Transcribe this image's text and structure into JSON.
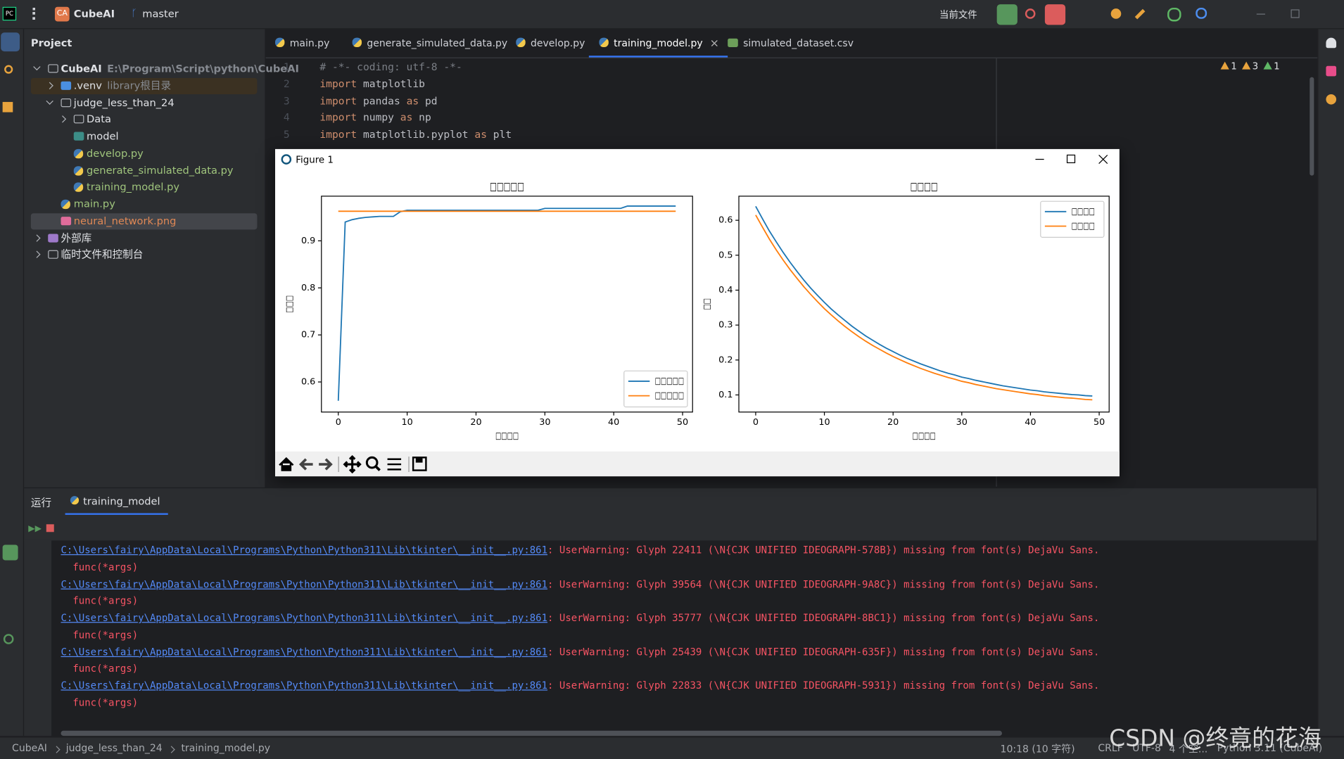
{
  "toolbar": {
    "project_badge": "CA",
    "project": "CubeAI",
    "branch": "master",
    "run_config": "当前文件"
  },
  "project_panel": {
    "title": "Project",
    "tree": [
      {
        "label": "CubeAI",
        "note": "E:\\Program\\Script\\python\\CubeAI",
        "icon": "folder",
        "expanded": true,
        "children": [
          {
            "label": ".venv",
            "note": "library根目录",
            "icon": "venv",
            "expanded": false,
            "background": "#3b3122"
          },
          {
            "label": "judge_less_than_24",
            "icon": "folder",
            "expanded": true,
            "children": [
              {
                "label": "Data",
                "icon": "folder",
                "expanded": false
              },
              {
                "label": "model",
                "icon": "module"
              },
              {
                "label": "develop.py",
                "icon": "python",
                "color": "#9fc47c"
              },
              {
                "label": "generate_simulated_data.py",
                "icon": "python",
                "color": "#9fc47c"
              },
              {
                "label": "training_model.py",
                "icon": "python",
                "color": "#9fc47c"
              }
            ]
          },
          {
            "label": "main.py",
            "icon": "python",
            "color": "#9fc47c"
          },
          {
            "label": "neural_network.png",
            "icon": "image",
            "color": "#e08855",
            "selected": true
          }
        ]
      },
      {
        "label": "外部库",
        "icon": "library",
        "expanded": false
      },
      {
        "label": "临时文件和控制台",
        "icon": "scratch",
        "expanded": false
      }
    ]
  },
  "tabs": [
    {
      "label": "main.py",
      "icon": "python"
    },
    {
      "label": "generate_simulated_data.py",
      "icon": "python"
    },
    {
      "label": "develop.py",
      "icon": "python"
    },
    {
      "label": "training_model.py",
      "icon": "python",
      "active": true
    },
    {
      "label": "simulated_dataset.csv",
      "icon": "csv"
    }
  ],
  "inspections": [
    1,
    3,
    1
  ],
  "editor": {
    "line_numbers": [
      1,
      2,
      3,
      4,
      5
    ],
    "lines": [
      [
        {
          "text": "# -*- coding: utf-8 -*-",
          "kind": "comment"
        }
      ],
      [
        {
          "text": "import",
          "kind": "keyword"
        },
        {
          "text": " matplotlib",
          "kind": "plain"
        }
      ],
      [
        {
          "text": "import",
          "kind": "keyword"
        },
        {
          "text": " pandas ",
          "kind": "plain"
        },
        {
          "text": "as",
          "kind": "keyword"
        },
        {
          "text": " pd",
          "kind": "plain"
        }
      ],
      [
        {
          "text": "import",
          "kind": "keyword"
        },
        {
          "text": " numpy ",
          "kind": "plain"
        },
        {
          "text": "as",
          "kind": "keyword"
        },
        {
          "text": " np",
          "kind": "plain"
        }
      ],
      [
        {
          "text": "import",
          "kind": "keyword"
        },
        {
          "text": " matplotlib.pyplot ",
          "kind": "plain"
        },
        {
          "text": "as",
          "kind": "keyword"
        },
        {
          "text": " plt",
          "kind": "plain"
        }
      ]
    ]
  },
  "figure": {
    "title": "Figure 1"
  },
  "chart_data": [
    {
      "type": "line",
      "title": "□□□□□",
      "x_label": "□□□□",
      "y_label": "□□□",
      "x": [
        0,
        1,
        2,
        3,
        4,
        5,
        6,
        7,
        8,
        9,
        10,
        11,
        12,
        13,
        14,
        15,
        16,
        17,
        18,
        19,
        20,
        21,
        22,
        23,
        24,
        25,
        26,
        27,
        28,
        29,
        30,
        31,
        32,
        33,
        34,
        35,
        36,
        37,
        38,
        39,
        40,
        41,
        42,
        43,
        44,
        45,
        46,
        47,
        48,
        49
      ],
      "series": [
        {
          "name": "□□□□□",
          "color": "#1f77b4",
          "values": [
            0.56,
            0.94,
            0.945,
            0.948,
            0.95,
            0.951,
            0.952,
            0.952,
            0.952,
            0.962,
            0.965,
            0.965,
            0.965,
            0.965,
            0.965,
            0.965,
            0.965,
            0.965,
            0.965,
            0.965,
            0.965,
            0.965,
            0.965,
            0.965,
            0.965,
            0.965,
            0.965,
            0.965,
            0.965,
            0.965,
            0.969,
            0.969,
            0.969,
            0.969,
            0.969,
            0.969,
            0.969,
            0.969,
            0.969,
            0.969,
            0.969,
            0.969,
            0.974,
            0.974,
            0.974,
            0.974,
            0.974,
            0.974,
            0.974,
            0.974
          ]
        },
        {
          "name": "□□□□□",
          "color": "#ff7f0e",
          "values": [
            0.963,
            0.963,
            0.963,
            0.963,
            0.963,
            0.963,
            0.963,
            0.963,
            0.963,
            0.963,
            0.963,
            0.963,
            0.963,
            0.963,
            0.963,
            0.963,
            0.963,
            0.963,
            0.963,
            0.963,
            0.963,
            0.963,
            0.963,
            0.963,
            0.963,
            0.963,
            0.963,
            0.963,
            0.963,
            0.963,
            0.963,
            0.963,
            0.963,
            0.963,
            0.963,
            0.963,
            0.963,
            0.963,
            0.963,
            0.963,
            0.963,
            0.963,
            0.963,
            0.963,
            0.963,
            0.963,
            0.963,
            0.963,
            0.963,
            0.963
          ]
        }
      ],
      "xlim": [
        -2.45,
        51.45
      ],
      "xticks": [
        0,
        10,
        20,
        30,
        40,
        50
      ],
      "ylim": [
        0.536,
        0.995
      ],
      "yticks": [
        0.6,
        0.7,
        0.8,
        0.9
      ],
      "legend": "lower right",
      "grid": false
    },
    {
      "type": "line",
      "title": "□□□□",
      "x_label": "□□□□",
      "y_label": "□□",
      "x": [
        0,
        1,
        2,
        3,
        4,
        5,
        6,
        7,
        8,
        9,
        10,
        11,
        12,
        13,
        14,
        15,
        16,
        17,
        18,
        19,
        20,
        21,
        22,
        23,
        24,
        25,
        26,
        27,
        28,
        29,
        30,
        31,
        32,
        33,
        34,
        35,
        36,
        37,
        38,
        39,
        40,
        41,
        42,
        43,
        44,
        45,
        46,
        47,
        48,
        49
      ],
      "series": [
        {
          "name": "□□□□",
          "color": "#1f77b4",
          "values": [
            0.64,
            0.604,
            0.569,
            0.538,
            0.508,
            0.48,
            0.454,
            0.429,
            0.406,
            0.385,
            0.365,
            0.346,
            0.329,
            0.313,
            0.297,
            0.283,
            0.269,
            0.257,
            0.245,
            0.234,
            0.224,
            0.214,
            0.205,
            0.197,
            0.189,
            0.182,
            0.175,
            0.168,
            0.162,
            0.157,
            0.151,
            0.147,
            0.142,
            0.138,
            0.134,
            0.13,
            0.126,
            0.123,
            0.12,
            0.117,
            0.114,
            0.112,
            0.109,
            0.107,
            0.105,
            0.103,
            0.101,
            0.1,
            0.098,
            0.097
          ]
        },
        {
          "name": "□□□□",
          "color": "#ff7f0e",
          "values": [
            0.615,
            0.58,
            0.546,
            0.515,
            0.486,
            0.459,
            0.434,
            0.41,
            0.388,
            0.367,
            0.347,
            0.329,
            0.312,
            0.296,
            0.281,
            0.267,
            0.254,
            0.242,
            0.231,
            0.22,
            0.21,
            0.201,
            0.192,
            0.184,
            0.176,
            0.169,
            0.162,
            0.156,
            0.15,
            0.145,
            0.139,
            0.135,
            0.13,
            0.126,
            0.122,
            0.118,
            0.115,
            0.112,
            0.109,
            0.106,
            0.103,
            0.101,
            0.098,
            0.096,
            0.094,
            0.092,
            0.091,
            0.089,
            0.087,
            0.086
          ]
        }
      ],
      "xlim": [
        -2.45,
        51.45
      ],
      "xticks": [
        0,
        10,
        20,
        30,
        40,
        50
      ],
      "ylim": [
        0.051,
        0.669
      ],
      "yticks": [
        0.1,
        0.2,
        0.3,
        0.4,
        0.5,
        0.6
      ],
      "legend": "upper right",
      "grid": false
    }
  ],
  "run_panel": {
    "title": "运行",
    "tab": "training_model",
    "output": [
      {
        "path": "C:\\Users\\fairy\\AppData\\Local\\Programs\\Python\\Python311\\Lib\\tkinter\\__init__.py:861",
        "message": ": UserWarning: Glyph 22411 (\\N{CJK UNIFIED IDEOGRAPH-578B}) missing from font(s) DejaVu Sans.",
        "trace": "  func(*args)"
      },
      {
        "path": "C:\\Users\\fairy\\AppData\\Local\\Programs\\Python\\Python311\\Lib\\tkinter\\__init__.py:861",
        "message": ": UserWarning: Glyph 39564 (\\N{CJK UNIFIED IDEOGRAPH-9A8C}) missing from font(s) DejaVu Sans.",
        "trace": "  func(*args)"
      },
      {
        "path": "C:\\Users\\fairy\\AppData\\Local\\Programs\\Python\\Python311\\Lib\\tkinter\\__init__.py:861",
        "message": ": UserWarning: Glyph 35777 (\\N{CJK UNIFIED IDEOGRAPH-8BC1}) missing from font(s) DejaVu Sans.",
        "trace": "  func(*args)"
      },
      {
        "path": "C:\\Users\\fairy\\AppData\\Local\\Programs\\Python\\Python311\\Lib\\tkinter\\__init__.py:861",
        "message": ": UserWarning: Glyph 25439 (\\N{CJK UNIFIED IDEOGRAPH-635F}) missing from font(s) DejaVu Sans.",
        "trace": "  func(*args)"
      },
      {
        "path": "C:\\Users\\fairy\\AppData\\Local\\Programs\\Python\\Python311\\Lib\\tkinter\\__init__.py:861",
        "message": ": UserWarning: Glyph 22833 (\\N{CJK UNIFIED IDEOGRAPH-5931}) missing from font(s) DejaVu Sans.",
        "trace": "  func(*args)"
      }
    ]
  },
  "status_bar": {
    "breadcrumbs": [
      "CubeAI",
      "judge_less_than_24",
      "training_model.py"
    ],
    "position": "10:18 (10 字符)",
    "line_separator": "CRLF",
    "encoding": "UTF-8",
    "indent": "4 个空...",
    "interpreter": "Python 3.11 (CubeAI)"
  },
  "watermark": "CSDN @终竟的花海"
}
